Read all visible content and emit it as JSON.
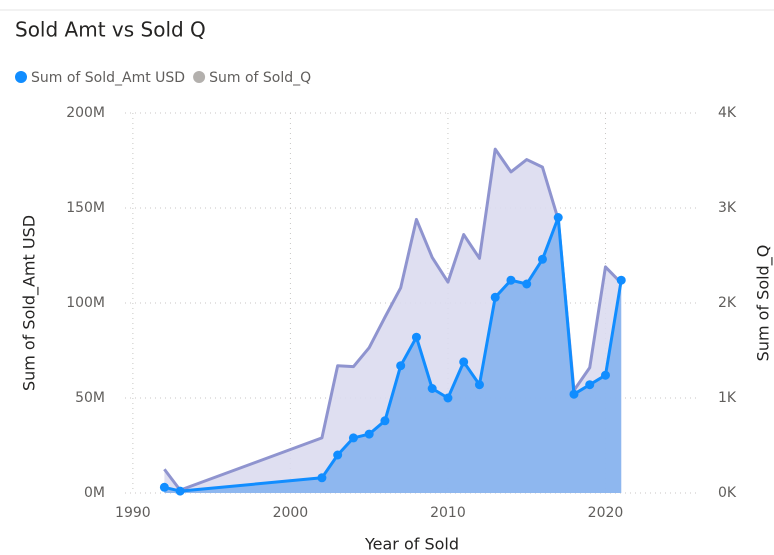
{
  "chart_data": {
    "type": "area",
    "title": "Sold Amt vs Sold Q",
    "x_label": "Year of Sold",
    "y_label": "Sum of Sold_Amt USD",
    "y2_label": "Sum of Sold_Q",
    "x": [
      1992,
      1993,
      2002,
      2003,
      2004,
      2005,
      2006,
      2007,
      2008,
      2009,
      2010,
      2011,
      2012,
      2013,
      2014,
      2015,
      2016,
      2017,
      2018,
      2019,
      2020,
      2021
    ],
    "series": [
      {
        "name": "Sum of Sold_Amt USD",
        "color": "#118dff",
        "area_color": "#89b4ee",
        "markers": true,
        "values": [
          3000000,
          1000000,
          8000000,
          20000000,
          29000000,
          31000000,
          38000000,
          67000000,
          82000000,
          55000000,
          50000000,
          69000000,
          57000000,
          103000000,
          112000000,
          110000000,
          123000000,
          145000000,
          52000000,
          57000000,
          62000000,
          112000000
        ]
      },
      {
        "name": "Sum of Sold_Q",
        "color": "#b3b0ad",
        "line_color": "#8f94cf",
        "area_color": "#dcdcf0",
        "axis": "y2",
        "markers": false,
        "values": [
          250,
          30,
          580,
          1340,
          1330,
          1530,
          1850,
          2160,
          2880,
          2480,
          2220,
          2720,
          2470,
          3620,
          3380,
          3510,
          3430,
          2880,
          1080,
          1320,
          2380,
          2210
        ]
      }
    ],
    "xlim": [
      1989.5,
      2026
    ],
    "xticks": [
      1990,
      2000,
      2010,
      2020
    ],
    "ylim": [
      0,
      200000000
    ],
    "yticks": [
      {
        "value": 0,
        "label": "0M"
      },
      {
        "value": 50000000,
        "label": "50M"
      },
      {
        "value": 100000000,
        "label": "100M"
      },
      {
        "value": 150000000,
        "label": "150M"
      },
      {
        "value": 200000000,
        "label": "200M"
      }
    ],
    "y2lim": [
      0,
      4000
    ],
    "y2ticks": [
      {
        "value": 0,
        "label": "0K"
      },
      {
        "value": 1000,
        "label": "1K"
      },
      {
        "value": 2000,
        "label": "2K"
      },
      {
        "value": 3000,
        "label": "3K"
      },
      {
        "value": 4000,
        "label": "4K"
      }
    ],
    "grid": true
  }
}
